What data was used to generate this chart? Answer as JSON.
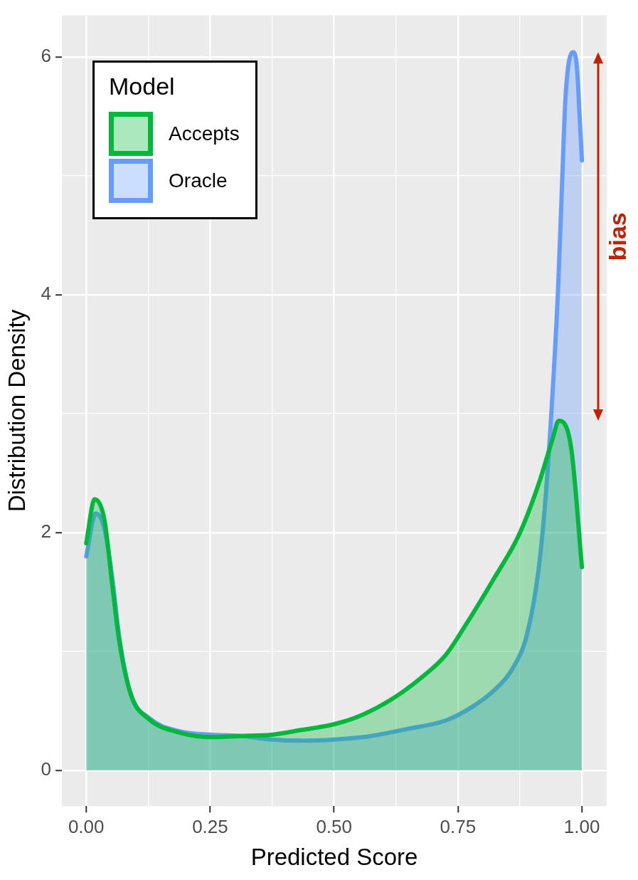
{
  "chart_data": {
    "type": "area",
    "xlabel": "Predicted Score",
    "ylabel": "Distribution Density",
    "legend_title": "Model",
    "legend": "top left",
    "grid": true,
    "xlim": [
      -0.049,
      1.05
    ],
    "ylim": [
      -0.3,
      6.35
    ],
    "xticks": [
      {
        "value": 0,
        "label": "0.00"
      },
      {
        "value": 0.125,
        "label": null
      },
      {
        "value": 0.25,
        "label": "0.25"
      },
      {
        "value": 0.375,
        "label": null
      },
      {
        "value": 0.5,
        "label": "0.50"
      },
      {
        "value": 0.625,
        "label": null
      },
      {
        "value": 0.75,
        "label": "0.75"
      },
      {
        "value": 0.875,
        "label": null
      },
      {
        "value": 1,
        "label": "1.00"
      }
    ],
    "yticks": [
      0,
      {
        "value": 1,
        "label": null
      },
      2,
      {
        "value": 3,
        "label": null
      },
      4,
      {
        "value": 5,
        "label": null
      },
      6
    ],
    "series": [
      {
        "name": "Accepts",
        "color": "#00b93a",
        "x": [
          0,
          0.017,
          0.037,
          0.052,
          0.067,
          0.09,
          0.127,
          0.187,
          0.254,
          0.314,
          0.374,
          0.434,
          0.501,
          0.553,
          0.613,
          0.673,
          0.725,
          0.762,
          0.822,
          0.874,
          0.912,
          0.941,
          0.953,
          0.978,
          1
        ],
        "values": [
          1.91,
          2.28,
          2.1,
          1.58,
          1.08,
          0.64,
          0.43,
          0.32,
          0.28,
          0.29,
          0.3,
          0.34,
          0.39,
          0.46,
          0.59,
          0.77,
          0.97,
          1.2,
          1.61,
          1.99,
          2.4,
          2.79,
          2.94,
          2.72,
          1.71
        ]
      },
      {
        "name": "Oracle",
        "color": "#659cff",
        "x": [
          0,
          0.019,
          0.037,
          0.052,
          0.067,
          0.09,
          0.127,
          0.187,
          0.254,
          0.314,
          0.374,
          0.434,
          0.501,
          0.575,
          0.649,
          0.725,
          0.777,
          0.822,
          0.859,
          0.889,
          0.912,
          0.927,
          0.941,
          0.952,
          0.96,
          0.967,
          0.982,
          0.99,
          0.995,
          1
        ],
        "values": [
          1.8,
          2.16,
          2.03,
          1.64,
          1.11,
          0.64,
          0.44,
          0.33,
          0.3,
          0.29,
          0.26,
          0.25,
          0.26,
          0.29,
          0.35,
          0.42,
          0.53,
          0.67,
          0.85,
          1.14,
          1.67,
          2.31,
          3.19,
          4.06,
          4.94,
          5.67,
          6.04,
          5.91,
          5.53,
          5.13
        ]
      }
    ],
    "annotations": [
      "bias"
    ]
  }
}
